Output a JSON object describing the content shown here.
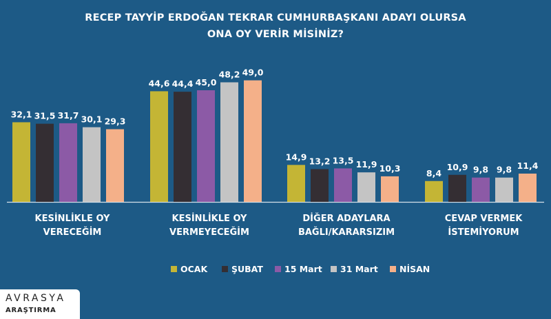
{
  "chart_data": {
    "type": "bar",
    "title": "RECEP TAYYİP ERDOĞAN TEKRAR CUMHURBAŞKANI ADAYI OLURSA ONA OY VERİR MİSİNİZ?",
    "title_lines": [
      "RECEP TAYYİP ERDOĞAN TEKRAR CUMHURBAŞKANI ADAYI OLURSA",
      "ONA OY VERİR MİSİNİZ?"
    ],
    "categories": [
      [
        "KESİNLİKLE OY",
        "VERECEĞİM"
      ],
      [
        "KESİNLİKLE OY",
        "VERMEYECEĞİM"
      ],
      [
        "DİĞER ADAYLARA",
        "BAĞLI/KARARSIZIM"
      ],
      [
        "CEVAP VERMEK",
        "İSTEMİYORUM"
      ]
    ],
    "series": [
      {
        "name": "OCAK",
        "color": "#c4b535",
        "values": [
          32.1,
          44.6,
          14.9,
          8.4
        ],
        "labels": [
          "32,1",
          "44,6",
          "14,9",
          "8,4"
        ]
      },
      {
        "name": "ŞUBAT",
        "color": "#342e33",
        "values": [
          31.5,
          44.4,
          13.2,
          10.9
        ],
        "labels": [
          "31,5",
          "44,4",
          "13,2",
          "10,9"
        ]
      },
      {
        "name": "15 Mart",
        "color": "#8c5aa6",
        "values": [
          31.7,
          45.0,
          13.5,
          9.8
        ],
        "labels": [
          "31,7",
          "45,0",
          "13,5",
          "9,8"
        ]
      },
      {
        "name": "31 Mart",
        "color": "#c4c4c4",
        "values": [
          30.1,
          48.2,
          11.9,
          9.8
        ],
        "labels": [
          "30,1",
          "48,2",
          "11,9",
          "9,8"
        ]
      },
      {
        "name": "NİSAN",
        "color": "#f4b089",
        "values": [
          29.3,
          49.0,
          10.3,
          11.4
        ],
        "labels": [
          "29,3",
          "49,0",
          "10,3",
          "11,4"
        ]
      }
    ],
    "ylim": [
      0,
      50
    ],
    "grid": false,
    "legend_position": "bottom"
  },
  "branding": {
    "name": "AVRASYA",
    "sub": "ARAŞTIRMA"
  },
  "colors": {
    "background": "#1d5a86",
    "text": "#ffffff"
  }
}
